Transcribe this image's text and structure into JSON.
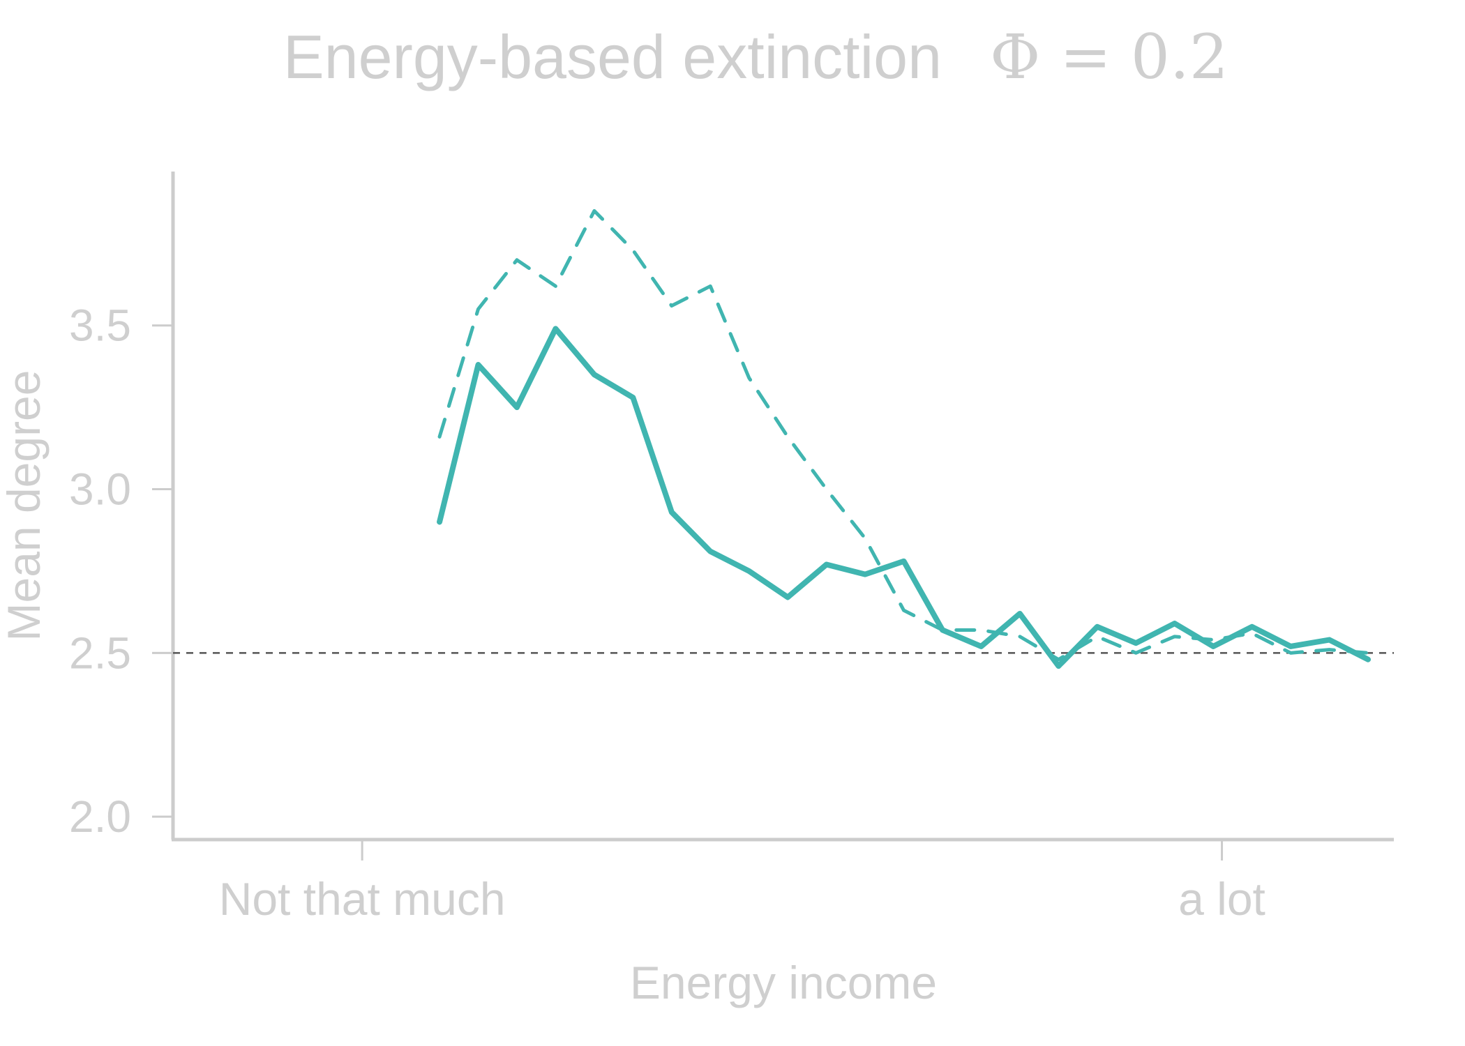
{
  "chart_data": {
    "type": "line",
    "title": "Energy-based extinction",
    "title_param": "Φ = 0.2",
    "xlabel": "Energy income",
    "ylabel": "Mean degree",
    "xtick_labels": [
      "Not that much",
      "a lot"
    ],
    "yticks": [
      2.0,
      2.5,
      3.0,
      3.5
    ],
    "ytick_labels": [
      "2.0",
      "2.5",
      "3.0",
      "3.5"
    ],
    "ylim": [
      1.93,
      3.97
    ],
    "xlim": [
      -0.22,
      1.2
    ],
    "reference_line": {
      "y": 2.5,
      "style": "dashed",
      "color": "#555555"
    },
    "grid": false,
    "legend": "none",
    "x": [
      0.09,
      0.135,
      0.18,
      0.225,
      0.27,
      0.315,
      0.36,
      0.405,
      0.45,
      0.495,
      0.54,
      0.585,
      0.63,
      0.675,
      0.72,
      0.765,
      0.81,
      0.855,
      0.9,
      0.945,
      0.99,
      1.035,
      1.08,
      1.125,
      1.17
    ],
    "series": [
      {
        "style": "solid",
        "color": "#40b5b0",
        "values": [
          2.9,
          3.38,
          3.25,
          3.49,
          3.35,
          3.28,
          2.93,
          2.81,
          2.75,
          2.67,
          2.77,
          2.74,
          2.78,
          2.57,
          2.52,
          2.62,
          2.46,
          2.58,
          2.53,
          2.59,
          2.52,
          2.58,
          2.52,
          2.54,
          2.48
        ]
      },
      {
        "style": "dashed",
        "color": "#40b5b0",
        "values": [
          3.16,
          3.55,
          3.7,
          3.62,
          3.85,
          3.73,
          3.56,
          3.62,
          3.34,
          3.16,
          3.0,
          2.85,
          2.63,
          2.57,
          2.57,
          2.55,
          2.48,
          2.55,
          2.5,
          2.55,
          2.54,
          2.56,
          2.5,
          2.51,
          2.5
        ]
      }
    ]
  }
}
